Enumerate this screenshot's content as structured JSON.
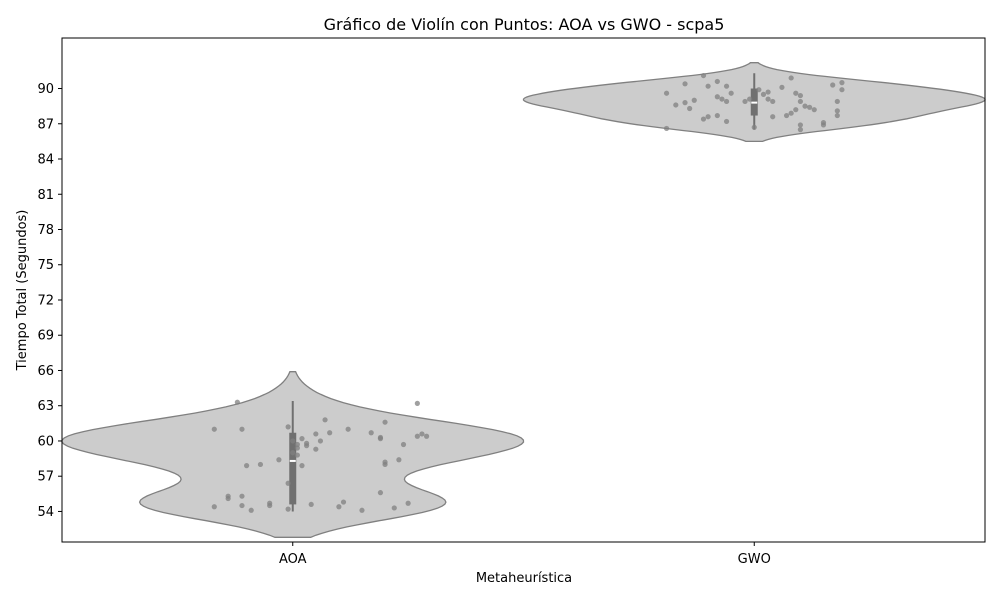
{
  "chart_data": {
    "type": "violin",
    "title": "Gráfico de Violín con Puntos: AOA vs GWO - scpa5",
    "xlabel": "Metaheurística",
    "ylabel": "Tiempo Total (Segundos)",
    "categories": [
      "AOA",
      "GWO"
    ],
    "ylim": [
      51.4,
      94.3
    ],
    "yticks": [
      54,
      57,
      60,
      63,
      66,
      69,
      72,
      75,
      78,
      81,
      84,
      87,
      90
    ],
    "grid": false,
    "colors": {
      "violin_fill": "#cccccc",
      "violin_edge": "#808080",
      "points": "#808080",
      "box": "#707070",
      "median": "#ffffff"
    },
    "series": [
      {
        "category": "AOA",
        "violin_range": [
          51.8,
          65.9
        ],
        "box": {
          "q1": 54.6,
          "median": 58.3,
          "q3": 60.7,
          "whisker_low": 54.0,
          "whisker_high": 63.4
        },
        "points": [
          {
            "x": -0.17,
            "y": 61.0
          },
          {
            "x": -0.17,
            "y": 54.4
          },
          {
            "x": -0.14,
            "y": 55.1
          },
          {
            "x": -0.14,
            "y": 55.3
          },
          {
            "x": -0.12,
            "y": 63.3
          },
          {
            "x": -0.11,
            "y": 61.0
          },
          {
            "x": -0.11,
            "y": 55.3
          },
          {
            "x": -0.11,
            "y": 54.5
          },
          {
            "x": -0.1,
            "y": 57.9
          },
          {
            "x": -0.09,
            "y": 54.1
          },
          {
            "x": -0.07,
            "y": 58.0
          },
          {
            "x": -0.05,
            "y": 54.7
          },
          {
            "x": -0.05,
            "y": 54.5
          },
          {
            "x": -0.03,
            "y": 58.4
          },
          {
            "x": -0.01,
            "y": 54.2
          },
          {
            "x": -0.01,
            "y": 61.2
          },
          {
            "x": -0.01,
            "y": 56.4
          },
          {
            "x": 0.0,
            "y": 59.0
          },
          {
            "x": 0.0,
            "y": 60.0
          },
          {
            "x": 0.01,
            "y": 59.7
          },
          {
            "x": 0.01,
            "y": 58.8
          },
          {
            "x": 0.01,
            "y": 59.4
          },
          {
            "x": 0.02,
            "y": 60.2
          },
          {
            "x": 0.02,
            "y": 57.9
          },
          {
            "x": 0.03,
            "y": 59.6
          },
          {
            "x": 0.03,
            "y": 59.8
          },
          {
            "x": 0.04,
            "y": 54.6
          },
          {
            "x": 0.05,
            "y": 60.6
          },
          {
            "x": 0.05,
            "y": 59.3
          },
          {
            "x": 0.06,
            "y": 60.0
          },
          {
            "x": 0.07,
            "y": 61.8
          },
          {
            "x": 0.08,
            "y": 60.7
          },
          {
            "x": 0.1,
            "y": 54.4
          },
          {
            "x": 0.11,
            "y": 54.8
          },
          {
            "x": 0.12,
            "y": 61.0
          },
          {
            "x": 0.15,
            "y": 54.1
          },
          {
            "x": 0.17,
            "y": 60.7
          },
          {
            "x": 0.19,
            "y": 60.3
          },
          {
            "x": 0.19,
            "y": 60.2
          },
          {
            "x": 0.19,
            "y": 55.6
          },
          {
            "x": 0.2,
            "y": 58.0
          },
          {
            "x": 0.2,
            "y": 58.2
          },
          {
            "x": 0.2,
            "y": 61.6
          },
          {
            "x": 0.22,
            "y": 54.3
          },
          {
            "x": 0.23,
            "y": 58.4
          },
          {
            "x": 0.24,
            "y": 59.7
          },
          {
            "x": 0.25,
            "y": 54.7
          },
          {
            "x": 0.27,
            "y": 60.4
          },
          {
            "x": 0.27,
            "y": 63.2
          },
          {
            "x": 0.28,
            "y": 60.6
          },
          {
            "x": 0.29,
            "y": 60.4
          }
        ]
      },
      {
        "category": "GWO",
        "violin_range": [
          85.5,
          92.2
        ],
        "box": {
          "q1": 87.7,
          "median": 88.8,
          "q3": 90.0,
          "whisker_low": 86.5,
          "whisker_high": 91.3
        },
        "points": [
          {
            "x": -0.19,
            "y": 86.6
          },
          {
            "x": -0.19,
            "y": 89.6
          },
          {
            "x": -0.17,
            "y": 88.6
          },
          {
            "x": -0.15,
            "y": 90.4
          },
          {
            "x": -0.15,
            "y": 88.8
          },
          {
            "x": -0.14,
            "y": 88.3
          },
          {
            "x": -0.13,
            "y": 89.0
          },
          {
            "x": -0.11,
            "y": 87.4
          },
          {
            "x": -0.11,
            "y": 91.1
          },
          {
            "x": -0.1,
            "y": 90.2
          },
          {
            "x": -0.1,
            "y": 87.6
          },
          {
            "x": -0.08,
            "y": 87.7
          },
          {
            "x": -0.08,
            "y": 90.6
          },
          {
            "x": -0.08,
            "y": 89.3
          },
          {
            "x": -0.07,
            "y": 89.1
          },
          {
            "x": -0.06,
            "y": 90.2
          },
          {
            "x": -0.06,
            "y": 88.9
          },
          {
            "x": -0.06,
            "y": 87.2
          },
          {
            "x": -0.05,
            "y": 89.6
          },
          {
            "x": -0.02,
            "y": 88.9
          },
          {
            "x": -0.01,
            "y": 89.1
          },
          {
            "x": 0.0,
            "y": 86.7
          },
          {
            "x": 0.01,
            "y": 89.9
          },
          {
            "x": 0.02,
            "y": 89.5
          },
          {
            "x": 0.03,
            "y": 89.7
          },
          {
            "x": 0.03,
            "y": 89.1
          },
          {
            "x": 0.04,
            "y": 88.9
          },
          {
            "x": 0.04,
            "y": 87.6
          },
          {
            "x": 0.06,
            "y": 90.1
          },
          {
            "x": 0.07,
            "y": 87.7
          },
          {
            "x": 0.08,
            "y": 87.9
          },
          {
            "x": 0.08,
            "y": 90.9
          },
          {
            "x": 0.09,
            "y": 88.2
          },
          {
            "x": 0.09,
            "y": 89.6
          },
          {
            "x": 0.1,
            "y": 89.4
          },
          {
            "x": 0.1,
            "y": 88.9
          },
          {
            "x": 0.1,
            "y": 86.9
          },
          {
            "x": 0.1,
            "y": 86.5
          },
          {
            "x": 0.11,
            "y": 88.5
          },
          {
            "x": 0.12,
            "y": 88.4
          },
          {
            "x": 0.13,
            "y": 88.2
          },
          {
            "x": 0.15,
            "y": 87.1
          },
          {
            "x": 0.15,
            "y": 86.9
          },
          {
            "x": 0.17,
            "y": 90.3
          },
          {
            "x": 0.18,
            "y": 88.9
          },
          {
            "x": 0.18,
            "y": 87.7
          },
          {
            "x": 0.18,
            "y": 88.1
          },
          {
            "x": 0.19,
            "y": 90.5
          },
          {
            "x": 0.19,
            "y": 89.9
          }
        ]
      }
    ]
  }
}
